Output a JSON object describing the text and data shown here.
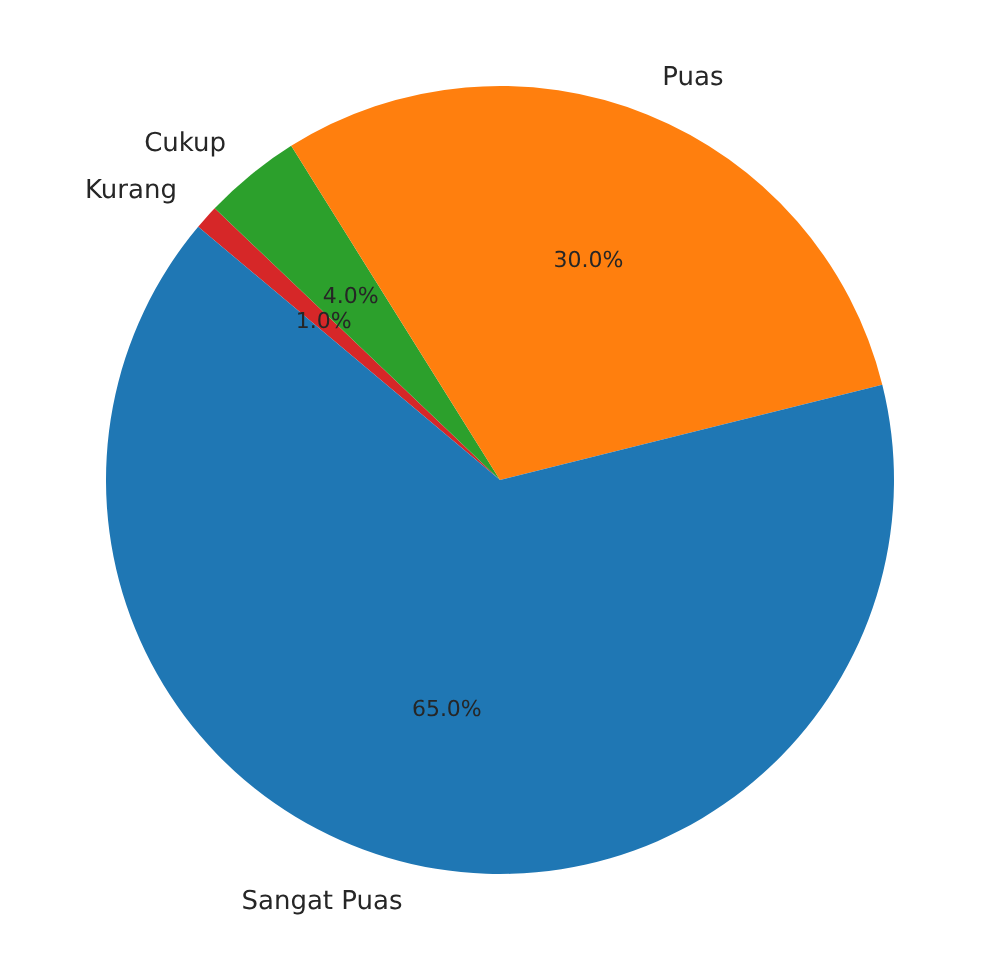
{
  "chart_data": {
    "type": "pie",
    "categories": [
      "Sangat Puas",
      "Puas",
      "Cukup",
      "Kurang"
    ],
    "values": [
      65,
      30,
      4,
      1
    ],
    "colors": [
      "#1f77b4",
      "#ff7f0e",
      "#2ca02c",
      "#d62728"
    ],
    "value_labels": [
      "65.0%",
      "30.0%",
      "4.0%",
      "1.0%"
    ],
    "legend": false
  }
}
